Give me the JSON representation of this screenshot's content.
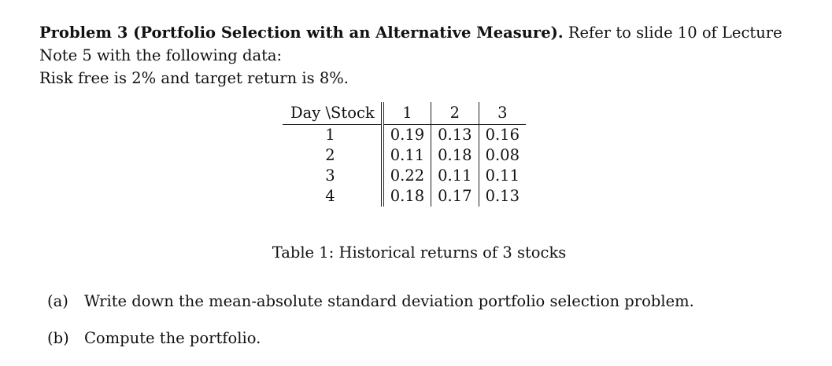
{
  "problem": {
    "heading": "Problem 3 (Portfolio Selection with an Alternative Measure).",
    "intro_rest": "Refer to slide 10 of Lecture",
    "line2": "Note 5 with the following data:",
    "line3": "Risk free is 2% and target return is 8%."
  },
  "table": {
    "corner_label": "Day \\Stock",
    "stocks": [
      "1",
      "2",
      "3"
    ],
    "rows": [
      {
        "day": "1",
        "values": [
          "0.19",
          "0.13",
          "0.16"
        ]
      },
      {
        "day": "2",
        "values": [
          "0.11",
          "0.18",
          "0.08"
        ]
      },
      {
        "day": "3",
        "values": [
          "0.22",
          "0.11",
          "0.11"
        ]
      },
      {
        "day": "4",
        "values": [
          "0.18",
          "0.17",
          "0.13"
        ]
      }
    ],
    "caption": "Table 1: Historical returns of 3 stocks"
  },
  "parts": [
    {
      "mark": "(a)",
      "text": "Write down the mean-absolute standard deviation portfolio selection problem."
    },
    {
      "mark": "(b)",
      "text": "Compute the portfolio."
    }
  ]
}
